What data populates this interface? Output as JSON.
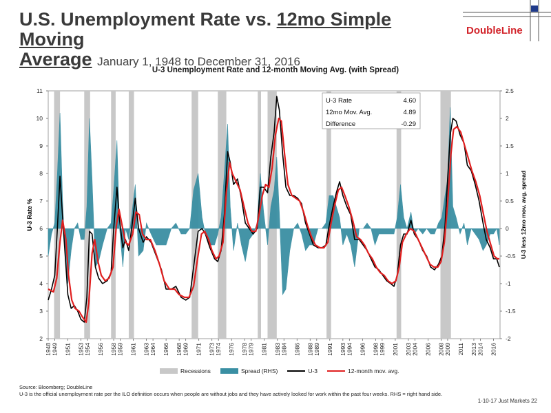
{
  "header": {
    "title_main": "U.S. Unemployment Rate vs. ",
    "title_underlined": "12mo Simple Moving",
    "title_line2": "Average",
    "title_dates": "January 1, 1948 to December 31, 2016",
    "brand": "DoubleLine"
  },
  "chart_data": {
    "type": "line",
    "title": "U-3 Unemployment Rate and 12-month Moving Avg. (with Spread)",
    "ylabel": "U-3 Rate %",
    "y2label": "U-3 less 12mo mov. avg. spread",
    "ylim": [
      2,
      11
    ],
    "y2lim": [
      -2,
      2.5
    ],
    "yticks": [
      "2",
      "3",
      "4",
      "5",
      "6",
      "7",
      "8",
      "9",
      "10",
      "11"
    ],
    "y2ticks": [
      "-2",
      "-1.5",
      "-1",
      "-0.5",
      "0",
      "0.5",
      "1",
      "1.5",
      "2",
      "2.5"
    ],
    "xlim": [
      1948,
      2017
    ],
    "xticks": [
      "1948",
      "1949",
      "1951",
      "1953",
      "1954",
      "1956",
      "1958",
      "1959",
      "1961",
      "1963",
      "1964",
      "1966",
      "1968",
      "1969",
      "1971",
      "1973",
      "1974",
      "1976",
      "1978",
      "1979",
      "1981",
      "1983",
      "1984",
      "1986",
      "1988",
      "1989",
      "1991",
      "1993",
      "1994",
      "1996",
      "1998",
      "1999",
      "2001",
      "2003",
      "2004",
      "2006",
      "2008",
      "2009",
      "2011",
      "2013",
      "2014",
      "2016"
    ],
    "recessions": [
      [
        1948.9,
        1949.8
      ],
      [
        1953.5,
        1954.4
      ],
      [
        1957.6,
        1958.3
      ],
      [
        1960.3,
        1961.1
      ],
      [
        1969.9,
        1970.9
      ],
      [
        1973.9,
        1975.2
      ],
      [
        1980.0,
        1980.5
      ],
      [
        1981.5,
        1982.9
      ],
      [
        1990.5,
        1991.2
      ],
      [
        2001.2,
        2001.9
      ],
      [
        2007.9,
        2009.5
      ]
    ],
    "u3": [
      [
        1948.0,
        3.4
      ],
      [
        1948.5,
        3.8
      ],
      [
        1949.0,
        4.3
      ],
      [
        1949.4,
        6.0
      ],
      [
        1949.8,
        7.9
      ],
      [
        1950.2,
        6.4
      ],
      [
        1950.6,
        5.0
      ],
      [
        1951.0,
        3.6
      ],
      [
        1951.5,
        3.1
      ],
      [
        1952.0,
        3.2
      ],
      [
        1952.5,
        3.0
      ],
      [
        1953.0,
        2.7
      ],
      [
        1953.5,
        2.6
      ],
      [
        1953.9,
        3.5
      ],
      [
        1954.3,
        5.9
      ],
      [
        1954.7,
        5.8
      ],
      [
        1955.2,
        4.6
      ],
      [
        1955.7,
        4.2
      ],
      [
        1956.3,
        4.0
      ],
      [
        1957.0,
        4.1
      ],
      [
        1957.6,
        4.4
      ],
      [
        1958.0,
        6.0
      ],
      [
        1958.5,
        7.5
      ],
      [
        1958.9,
        6.3
      ],
      [
        1959.4,
        5.3
      ],
      [
        1959.8,
        5.6
      ],
      [
        1960.3,
        5.2
      ],
      [
        1960.8,
        6.1
      ],
      [
        1961.3,
        7.1
      ],
      [
        1961.8,
        6.0
      ],
      [
        1962.5,
        5.5
      ],
      [
        1963.0,
        5.7
      ],
      [
        1963.7,
        5.5
      ],
      [
        1964.5,
        5.0
      ],
      [
        1965.3,
        4.5
      ],
      [
        1966.0,
        3.8
      ],
      [
        1966.8,
        3.8
      ],
      [
        1967.5,
        3.9
      ],
      [
        1968.3,
        3.5
      ],
      [
        1969.0,
        3.4
      ],
      [
        1969.6,
        3.5
      ],
      [
        1970.2,
        4.6
      ],
      [
        1970.9,
        5.9
      ],
      [
        1971.5,
        6.0
      ],
      [
        1972.0,
        5.8
      ],
      [
        1972.7,
        5.3
      ],
      [
        1973.4,
        4.9
      ],
      [
        1973.9,
        4.8
      ],
      [
        1974.4,
        5.2
      ],
      [
        1974.9,
        6.5
      ],
      [
        1975.4,
        8.8
      ],
      [
        1975.8,
        8.4
      ],
      [
        1976.3,
        7.6
      ],
      [
        1976.9,
        7.8
      ],
      [
        1977.5,
        7.1
      ],
      [
        1978.1,
        6.2
      ],
      [
        1978.7,
        6.0
      ],
      [
        1979.3,
        5.8
      ],
      [
        1979.9,
        6.0
      ],
      [
        1980.4,
        7.5
      ],
      [
        1980.9,
        7.5
      ],
      [
        1981.5,
        7.3
      ],
      [
        1982.0,
        8.6
      ],
      [
        1982.5,
        9.5
      ],
      [
        1982.9,
        10.8
      ],
      [
        1983.3,
        10.3
      ],
      [
        1983.8,
        8.7
      ],
      [
        1984.3,
        7.5
      ],
      [
        1984.9,
        7.2
      ],
      [
        1985.5,
        7.2
      ],
      [
        1986.1,
        7.1
      ],
      [
        1986.7,
        6.9
      ],
      [
        1987.3,
        6.2
      ],
      [
        1987.9,
        5.8
      ],
      [
        1988.5,
        5.4
      ],
      [
        1989.2,
        5.3
      ],
      [
        1989.8,
        5.3
      ],
      [
        1990.4,
        5.4
      ],
      [
        1990.9,
        6.1
      ],
      [
        1991.5,
        6.8
      ],
      [
        1992.0,
        7.3
      ],
      [
        1992.5,
        7.7
      ],
      [
        1993.0,
        7.2
      ],
      [
        1993.6,
        6.8
      ],
      [
        1994.2,
        6.5
      ],
      [
        1994.8,
        5.6
      ],
      [
        1995.5,
        5.6
      ],
      [
        1996.1,
        5.4
      ],
      [
        1996.7,
        5.2
      ],
      [
        1997.3,
        4.9
      ],
      [
        1997.9,
        4.6
      ],
      [
        1998.5,
        4.5
      ],
      [
        1999.1,
        4.3
      ],
      [
        1999.7,
        4.1
      ],
      [
        2000.3,
        4.0
      ],
      [
        2000.8,
        3.9
      ],
      [
        2001.3,
        4.3
      ],
      [
        2001.8,
        5.4
      ],
      [
        2002.3,
        5.8
      ],
      [
        2002.8,
        5.8
      ],
      [
        2003.4,
        6.3
      ],
      [
        2003.9,
        5.8
      ],
      [
        2004.5,
        5.6
      ],
      [
        2005.2,
        5.2
      ],
      [
        2005.8,
        5.0
      ],
      [
        2006.4,
        4.6
      ],
      [
        2007.0,
        4.5
      ],
      [
        2007.6,
        4.7
      ],
      [
        2008.1,
        5.0
      ],
      [
        2008.6,
        6.1
      ],
      [
        2009.0,
        7.8
      ],
      [
        2009.4,
        9.4
      ],
      [
        2009.8,
        10.0
      ],
      [
        2010.3,
        9.9
      ],
      [
        2010.9,
        9.4
      ],
      [
        2011.5,
        9.1
      ],
      [
        2012.0,
        8.3
      ],
      [
        2012.6,
        8.1
      ],
      [
        2013.2,
        7.6
      ],
      [
        2013.8,
        7.0
      ],
      [
        2014.4,
        6.2
      ],
      [
        2014.9,
        5.6
      ],
      [
        2015.5,
        5.3
      ],
      [
        2016.0,
        4.9
      ],
      [
        2016.5,
        4.9
      ],
      [
        2016.9,
        4.6
      ]
    ],
    "ma12": [
      [
        1948.0,
        3.8
      ],
      [
        1948.8,
        3.7
      ],
      [
        1949.3,
        4.2
      ],
      [
        1949.8,
        5.5
      ],
      [
        1950.2,
        6.3
      ],
      [
        1950.7,
        5.6
      ],
      [
        1951.1,
        4.3
      ],
      [
        1951.6,
        3.4
      ],
      [
        1952.1,
        3.1
      ],
      [
        1952.7,
        3.0
      ],
      [
        1953.2,
        2.8
      ],
      [
        1953.8,
        2.6
      ],
      [
        1954.2,
        3.3
      ],
      [
        1954.7,
        5.1
      ],
      [
        1955.1,
        5.6
      ],
      [
        1955.6,
        4.8
      ],
      [
        1956.1,
        4.3
      ],
      [
        1956.7,
        4.1
      ],
      [
        1957.3,
        4.2
      ],
      [
        1957.9,
        4.6
      ],
      [
        1958.4,
        6.1
      ],
      [
        1958.8,
        6.7
      ],
      [
        1959.3,
        6.1
      ],
      [
        1959.8,
        5.5
      ],
      [
        1960.3,
        5.4
      ],
      [
        1960.9,
        5.8
      ],
      [
        1961.4,
        6.6
      ],
      [
        1961.9,
        6.5
      ],
      [
        1962.4,
        5.8
      ],
      [
        1963.0,
        5.6
      ],
      [
        1963.6,
        5.6
      ],
      [
        1964.3,
        5.2
      ],
      [
        1965.0,
        4.7
      ],
      [
        1965.7,
        4.1
      ],
      [
        1966.5,
        3.8
      ],
      [
        1967.3,
        3.8
      ],
      [
        1968.0,
        3.6
      ],
      [
        1968.8,
        3.5
      ],
      [
        1969.5,
        3.5
      ],
      [
        1970.2,
        3.9
      ],
      [
        1970.8,
        4.9
      ],
      [
        1971.4,
        5.8
      ],
      [
        1971.9,
        5.9
      ],
      [
        1972.5,
        5.6
      ],
      [
        1973.0,
        5.2
      ],
      [
        1973.6,
        4.9
      ],
      [
        1974.1,
        5.0
      ],
      [
        1974.7,
        5.5
      ],
      [
        1975.2,
        7.3
      ],
      [
        1975.7,
        8.4
      ],
      [
        1976.1,
        8.0
      ],
      [
        1976.7,
        7.7
      ],
      [
        1977.3,
        7.4
      ],
      [
        1977.9,
        6.8
      ],
      [
        1978.5,
        6.2
      ],
      [
        1979.1,
        5.9
      ],
      [
        1979.7,
        5.9
      ],
      [
        1980.2,
        6.5
      ],
      [
        1980.7,
        7.2
      ],
      [
        1981.2,
        7.6
      ],
      [
        1981.7,
        7.5
      ],
      [
        1982.2,
        8.2
      ],
      [
        1982.7,
        9.4
      ],
      [
        1983.2,
        10.0
      ],
      [
        1983.6,
        9.9
      ],
      [
        1984.1,
        8.7
      ],
      [
        1984.6,
        7.6
      ],
      [
        1985.2,
        7.2
      ],
      [
        1985.8,
        7.1
      ],
      [
        1986.4,
        7.0
      ],
      [
        1987.0,
        6.6
      ],
      [
        1987.6,
        6.1
      ],
      [
        1988.2,
        5.7
      ],
      [
        1988.8,
        5.4
      ],
      [
        1989.5,
        5.3
      ],
      [
        1990.1,
        5.3
      ],
      [
        1990.7,
        5.5
      ],
      [
        1991.2,
        6.2
      ],
      [
        1991.8,
        6.9
      ],
      [
        1992.3,
        7.4
      ],
      [
        1992.8,
        7.5
      ],
      [
        1993.3,
        7.2
      ],
      [
        1993.9,
        6.8
      ],
      [
        1994.5,
        6.3
      ],
      [
        1995.1,
        5.7
      ],
      [
        1995.7,
        5.6
      ],
      [
        1996.3,
        5.4
      ],
      [
        1996.9,
        5.1
      ],
      [
        1997.5,
        4.9
      ],
      [
        1998.1,
        4.6
      ],
      [
        1998.7,
        4.4
      ],
      [
        1999.3,
        4.3
      ],
      [
        1999.9,
        4.1
      ],
      [
        2000.5,
        4.0
      ],
      [
        2001.1,
        4.1
      ],
      [
        2001.6,
        4.6
      ],
      [
        2002.1,
        5.5
      ],
      [
        2002.7,
        5.8
      ],
      [
        2003.3,
        6.0
      ],
      [
        2003.9,
        5.9
      ],
      [
        2004.5,
        5.6
      ],
      [
        2005.1,
        5.3
      ],
      [
        2005.7,
        5.0
      ],
      [
        2006.3,
        4.7
      ],
      [
        2006.9,
        4.6
      ],
      [
        2007.5,
        4.6
      ],
      [
        2008.0,
        4.8
      ],
      [
        2008.5,
        5.5
      ],
      [
        2009.0,
        6.9
      ],
      [
        2009.5,
        8.7
      ],
      [
        2009.9,
        9.6
      ],
      [
        2010.4,
        9.7
      ],
      [
        2011.0,
        9.5
      ],
      [
        2011.6,
        9.0
      ],
      [
        2012.1,
        8.6
      ],
      [
        2012.7,
        8.1
      ],
      [
        2013.3,
        7.7
      ],
      [
        2013.9,
        7.2
      ],
      [
        2014.4,
        6.6
      ],
      [
        2015.0,
        5.9
      ],
      [
        2015.6,
        5.4
      ],
      [
        2016.1,
        5.0
      ],
      [
        2016.6,
        4.9
      ],
      [
        2016.9,
        4.9
      ]
    ],
    "spread": [
      [
        1948.0,
        -0.5
      ],
      [
        1948.5,
        -0.1
      ],
      [
        1949.0,
        0.1
      ],
      [
        1949.4,
        1.0
      ],
      [
        1949.8,
        2.1
      ],
      [
        1950.2,
        0.5
      ],
      [
        1950.6,
        -0.5
      ],
      [
        1951.0,
        -1.0
      ],
      [
        1951.5,
        -0.4
      ],
      [
        1952.0,
        0.0
      ],
      [
        1952.5,
        0.1
      ],
      [
        1953.0,
        -0.2
      ],
      [
        1953.5,
        -0.2
      ],
      [
        1953.9,
        0.4
      ],
      [
        1954.3,
        2.0
      ],
      [
        1954.7,
        0.9
      ],
      [
        1955.2,
        -0.7
      ],
      [
        1955.7,
        -0.6
      ],
      [
        1956.3,
        -0.3
      ],
      [
        1957.0,
        0.0
      ],
      [
        1957.6,
        0.1
      ],
      [
        1958.0,
        0.7
      ],
      [
        1958.5,
        1.6
      ],
      [
        1958.9,
        0.0
      ],
      [
        1959.4,
        -0.7
      ],
      [
        1959.8,
        0.0
      ],
      [
        1960.3,
        -0.2
      ],
      [
        1960.8,
        0.3
      ],
      [
        1961.3,
        0.8
      ],
      [
        1961.8,
        -0.5
      ],
      [
        1962.5,
        -0.4
      ],
      [
        1963.0,
        0.1
      ],
      [
        1963.7,
        -0.1
      ],
      [
        1964.5,
        -0.3
      ],
      [
        1965.3,
        -0.3
      ],
      [
        1966.0,
        -0.3
      ],
      [
        1966.8,
        0.0
      ],
      [
        1967.5,
        0.1
      ],
      [
        1968.3,
        -0.1
      ],
      [
        1969.0,
        -0.1
      ],
      [
        1969.6,
        0.0
      ],
      [
        1970.2,
        0.7
      ],
      [
        1970.9,
        1.0
      ],
      [
        1971.5,
        0.2
      ],
      [
        1972.0,
        -0.1
      ],
      [
        1972.7,
        -0.3
      ],
      [
        1973.4,
        -0.3
      ],
      [
        1973.9,
        -0.1
      ],
      [
        1974.4,
        0.2
      ],
      [
        1974.9,
        1.0
      ],
      [
        1975.4,
        1.9
      ],
      [
        1975.8,
        0.4
      ],
      [
        1976.3,
        -0.4
      ],
      [
        1976.9,
        0.1
      ],
      [
        1977.5,
        -0.3
      ],
      [
        1978.1,
        -0.6
      ],
      [
        1978.7,
        -0.2
      ],
      [
        1979.3,
        -0.1
      ],
      [
        1979.9,
        0.1
      ],
      [
        1980.4,
        1.0
      ],
      [
        1980.9,
        0.3
      ],
      [
        1981.5,
        -0.3
      ],
      [
        1982.0,
        0.4
      ],
      [
        1982.5,
        0.7
      ],
      [
        1982.9,
        1.3
      ],
      [
        1983.3,
        0.3
      ],
      [
        1983.8,
        -1.2
      ],
      [
        1984.3,
        -1.1
      ],
      [
        1984.9,
        -0.4
      ],
      [
        1985.5,
        0.0
      ],
      [
        1986.1,
        0.1
      ],
      [
        1986.7,
        -0.1
      ],
      [
        1987.3,
        -0.4
      ],
      [
        1987.9,
        -0.3
      ],
      [
        1988.5,
        -0.3
      ],
      [
        1989.2,
        0.0
      ],
      [
        1989.8,
        0.0
      ],
      [
        1990.4,
        0.1
      ],
      [
        1990.9,
        0.6
      ],
      [
        1991.5,
        0.6
      ],
      [
        1992.0,
        0.4
      ],
      [
        1992.5,
        0.2
      ],
      [
        1993.0,
        -0.3
      ],
      [
        1993.6,
        -0.1
      ],
      [
        1994.2,
        -0.3
      ],
      [
        1994.8,
        -0.7
      ],
      [
        1995.5,
        0.0
      ],
      [
        1996.1,
        0.0
      ],
      [
        1996.7,
        0.1
      ],
      [
        1997.3,
        0.0
      ],
      [
        1997.9,
        -0.3
      ],
      [
        1998.5,
        -0.1
      ],
      [
        1999.1,
        -0.1
      ],
      [
        1999.7,
        -0.1
      ],
      [
        2000.3,
        -0.1
      ],
      [
        2000.8,
        -0.1
      ],
      [
        2001.3,
        0.2
      ],
      [
        2001.8,
        0.8
      ],
      [
        2002.3,
        0.2
      ],
      [
        2002.8,
        0.0
      ],
      [
        2003.4,
        0.3
      ],
      [
        2003.9,
        -0.1
      ],
      [
        2004.5,
        0.0
      ],
      [
        2005.2,
        -0.1
      ],
      [
        2005.8,
        0.0
      ],
      [
        2006.4,
        -0.1
      ],
      [
        2007.0,
        -0.1
      ],
      [
        2007.6,
        0.1
      ],
      [
        2008.1,
        0.2
      ],
      [
        2008.6,
        0.6
      ],
      [
        2009.0,
        0.9
      ],
      [
        2009.4,
        2.2
      ],
      [
        2009.8,
        0.4
      ],
      [
        2010.3,
        0.2
      ],
      [
        2010.9,
        -0.1
      ],
      [
        2011.5,
        0.1
      ],
      [
        2012.0,
        -0.3
      ],
      [
        2012.6,
        0.0
      ],
      [
        2013.2,
        -0.1
      ],
      [
        2013.8,
        -0.2
      ],
      [
        2014.4,
        -0.4
      ],
      [
        2014.9,
        -0.3
      ],
      [
        2015.5,
        -0.1
      ],
      [
        2016.0,
        -0.1
      ],
      [
        2016.5,
        0.0
      ],
      [
        2016.9,
        -0.3
      ]
    ],
    "legend": [
      "Recessions",
      "Spread (RHS)",
      "U-3",
      "12-month mov. avg."
    ],
    "colors": {
      "recession": "#c8c8c8",
      "spread": "#3a8fa3",
      "u3": "#000000",
      "ma": "#e01f1f"
    },
    "infobox": [
      {
        "label": "U-3 Rate",
        "value": "4.60"
      },
      {
        "label": "12mo Mov. Avg.",
        "value": "4.89"
      },
      {
        "label": "Difference",
        "value": "-0.29"
      }
    ]
  },
  "footer": {
    "source": "Source: Bloomberg; DoubleLine",
    "note": "U-3  is the official unemployment rate per the ILO definition occurs when people are without jobs and they have actively looked for work within the past four weeks. RHS = right hand side.",
    "page": "1-10-17 Just Markets   22"
  }
}
